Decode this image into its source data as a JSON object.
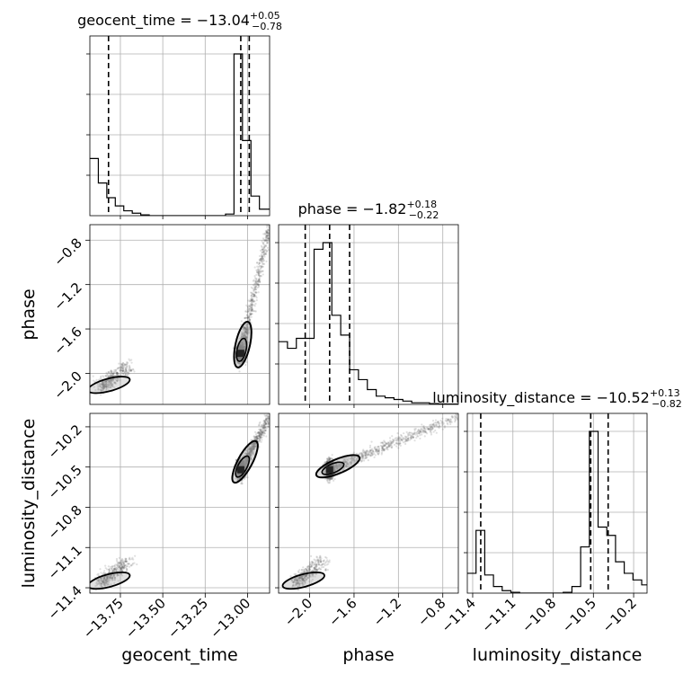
{
  "chart_data": {
    "type": "scatter",
    "parameters": [
      "geocent_time",
      "phase",
      "luminosity_distance"
    ],
    "axis_labels": [
      "geocent_time",
      "phase",
      "luminosity_distance"
    ],
    "ranges": {
      "geocent_time": [
        -13.93,
        -12.87
      ],
      "phase": [
        -2.28,
        -0.66
      ],
      "luminosity_distance": [
        -11.44,
        -10.1
      ]
    },
    "ticks": {
      "geocent_time": [
        -13.75,
        -13.5,
        -13.25,
        -13.0
      ],
      "phase": [
        -2.0,
        -1.6,
        -1.2,
        -0.8
      ],
      "luminosity_distance": [
        -11.4,
        -11.1,
        -10.8,
        -10.5,
        -10.2
      ]
    },
    "tick_labels": {
      "geocent_time": [
        "−13.75",
        "−13.50",
        "−13.25",
        "−13.00"
      ],
      "phase": [
        "−2.0",
        "−1.6",
        "−1.2",
        "−0.8"
      ],
      "luminosity_distance": [
        "−11.4",
        "−11.1",
        "−10.8",
        "−10.5",
        "−10.2"
      ]
    },
    "titles": [
      {
        "param": "geocent_time",
        "prefix": "geocent_time = −13.04",
        "sup": "+0.05",
        "sub": "−0.78"
      },
      {
        "param": "phase",
        "prefix": "phase = −1.82",
        "sup": "+0.18",
        "sub": "−0.22"
      },
      {
        "param": "luminosity_distance",
        "prefix": "luminosity_distance = −10.52",
        "sup": "+0.13",
        "sub": "−0.82"
      }
    ],
    "quantiles": {
      "geocent_time": [
        -13.82,
        -13.04,
        -12.99
      ],
      "phase": [
        -2.04,
        -1.82,
        -1.64
      ],
      "luminosity_distance": [
        -11.34,
        -10.52,
        -10.39
      ]
    },
    "histograms": {
      "geocent_time": {
        "edges": [
          -13.93,
          -13.88,
          -13.83,
          -13.78,
          -13.73,
          -13.68,
          -13.63,
          -13.58,
          -13.53,
          -13.48,
          -13.43,
          -13.38,
          -13.33,
          -13.28,
          -13.23,
          -13.18,
          -13.13,
          -13.08,
          -13.03,
          -12.98,
          -12.93,
          -12.87
        ],
        "counts": [
          0.35,
          0.2,
          0.11,
          0.06,
          0.03,
          0.015,
          0.005,
          0.0,
          0.0,
          0.0,
          0.0,
          0.0,
          0.0,
          0.0,
          0.0,
          0.0,
          0.01,
          0.99,
          0.46,
          0.12,
          0.04
        ]
      },
      "phase": {
        "edges": [
          -2.28,
          -2.2,
          -2.12,
          -2.04,
          -1.96,
          -1.88,
          -1.8,
          -1.72,
          -1.64,
          -1.56,
          -1.48,
          -1.4,
          -1.32,
          -1.24,
          -1.16,
          -1.08,
          -1.0,
          -0.92,
          -0.84,
          -0.76,
          -0.66
        ],
        "counts": [
          0.38,
          0.34,
          0.4,
          0.4,
          0.94,
          0.98,
          0.54,
          0.42,
          0.21,
          0.15,
          0.09,
          0.05,
          0.04,
          0.03,
          0.02,
          0.01,
          0.01,
          0.005,
          0.003,
          0.002
        ]
      },
      "luminosity_distance": {
        "edges": [
          -11.44,
          -11.375,
          -11.31,
          -11.245,
          -11.18,
          -11.115,
          -11.05,
          -10.985,
          -10.92,
          -10.855,
          -10.79,
          -10.725,
          -10.66,
          -10.595,
          -10.53,
          -10.465,
          -10.4,
          -10.335,
          -10.27,
          -10.205,
          -10.14,
          -10.1
        ],
        "counts": [
          0.12,
          0.38,
          0.11,
          0.04,
          0.015,
          0.005,
          0.0,
          0.0,
          0.0,
          0.0,
          0.0,
          0.005,
          0.04,
          0.28,
          0.98,
          0.4,
          0.35,
          0.19,
          0.12,
          0.08,
          0.05
        ]
      }
    },
    "clusters": {
      "geocent_time": {
        "main": -13.04,
        "secondary": -13.86
      },
      "phase": {
        "main": -1.82,
        "secondary": -2.12
      },
      "luminosity_distance": {
        "main": -10.52,
        "secondary": -11.36
      }
    },
    "scatter_tail_ends": {
      "geocent_time": -12.87,
      "phase": -0.66,
      "luminosity_distance": -10.12
    },
    "grid": true,
    "quantile_line_style": "dashed",
    "colors": {
      "line": "#000000",
      "grid": "#b0b0b0",
      "points": "#555555",
      "contour_fill": "#9a9a9a"
    }
  }
}
